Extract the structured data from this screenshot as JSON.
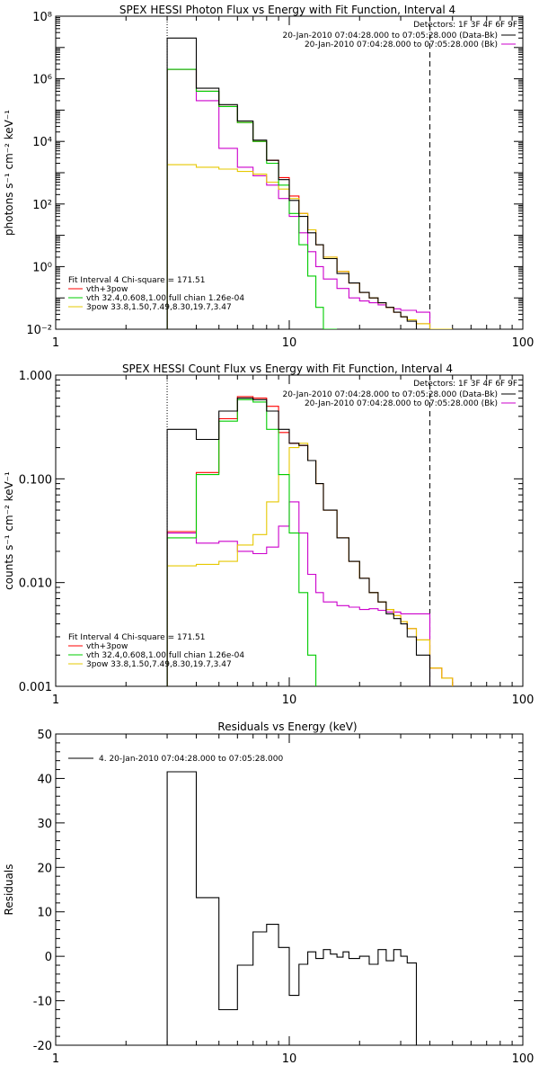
{
  "chart_data": [
    {
      "type": "line",
      "title": "SPEX HESSI Photon Flux vs Energy with Fit Function, Interval 4",
      "ylabel": "photons s⁻¹ cm⁻² keV⁻¹",
      "xscale": "log",
      "yscale": "log",
      "xlim": [
        1,
        100
      ],
      "ylim": [
        0.01,
        100000000
      ],
      "x_ticks": [
        "1",
        "10",
        "100"
      ],
      "y_ticks": [
        "10⁻²",
        "10⁰",
        "10²",
        "10⁴",
        "10⁶",
        "10⁸"
      ],
      "vlines": [
        {
          "x": 3,
          "style": "dotted"
        },
        {
          "x": 40,
          "style": "dashed"
        }
      ],
      "detectors": "Detectors: 1F 3F 4F 6F 9F",
      "legend_top": [
        {
          "label": "20-Jan-2010 07:04:28.000 to 07:05:28.000 (Data-Bk)",
          "color": "#000000"
        },
        {
          "label": "20-Jan-2010 07:04:28.000 to 07:05:28.000 (Bk)",
          "color": "#cc00cc"
        }
      ],
      "legend_bottom": [
        {
          "label": "Fit Interval 4    Chi-square = 171.51",
          "color": ""
        },
        {
          "label": "vth+3pow",
          "color": "#ff0000"
        },
        {
          "label": "vth 32.4,0.608,1.00   full chian 1.26e-04",
          "color": "#00cc00"
        },
        {
          "label": "3pow 33.8,1.50,7.49,8.30,19.7,3.47",
          "color": "#e6c800"
        }
      ],
      "bin_edges": [
        3,
        4,
        5,
        6,
        7,
        8,
        9,
        10,
        11,
        12,
        13,
        14,
        16,
        18,
        20,
        22,
        24,
        26,
        28,
        30,
        32,
        35,
        40,
        45,
        50
      ],
      "series": [
        {
          "name": "Data-Bk",
          "color": "#000000",
          "values": [
            20000000,
            500000,
            150000,
            45000,
            11000,
            2500,
            600,
            130,
            40,
            12,
            5,
            1.8,
            0.6,
            0.3,
            0.15,
            0.1,
            0.07,
            0.05,
            0.035,
            0.025,
            0.018,
            0.01,
            null,
            null
          ]
        },
        {
          "name": "Bk",
          "color": "#cc00cc",
          "values": [
            2000000,
            200000,
            6000,
            1500,
            800,
            400,
            150,
            40,
            12,
            3,
            1,
            0.4,
            0.2,
            0.1,
            0.08,
            0.07,
            0.06,
            0.05,
            0.045,
            0.04,
            0.04,
            0.035,
            null,
            null
          ]
        },
        {
          "name": "vth+3pow",
          "color": "#ff0000",
          "values": [
            2000000,
            400000,
            130000,
            40000,
            10000,
            2500,
            700,
            180,
            50,
            15,
            5,
            2,
            0.7,
            0.3,
            0.15,
            0.1,
            0.07,
            0.05,
            0.035,
            0.025,
            0.02,
            0.015,
            0.01,
            0.008
          ]
        },
        {
          "name": "vth",
          "color": "#00cc00",
          "values": [
            2000000,
            400000,
            130000,
            40000,
            10000,
            2000,
            400,
            50,
            5,
            0.5,
            0.05,
            0.005,
            null,
            null,
            null,
            null,
            null,
            null,
            null,
            null,
            null,
            null,
            null,
            null
          ]
        },
        {
          "name": "3pow",
          "color": "#e6c800",
          "values": [
            1800,
            1500,
            1300,
            1100,
            900,
            500,
            300,
            150,
            50,
            15,
            5,
            2,
            0.7,
            0.3,
            0.15,
            0.1,
            0.07,
            0.05,
            0.035,
            0.025,
            0.02,
            0.015,
            0.01,
            0.008
          ]
        }
      ]
    },
    {
      "type": "line",
      "title": "SPEX HESSI Count Flux vs Energy with Fit Function, Interval 4",
      "ylabel": "counts s⁻¹ cm⁻² keV⁻¹",
      "xscale": "log",
      "yscale": "log",
      "xlim": [
        1,
        100
      ],
      "ylim": [
        0.001,
        1
      ],
      "x_ticks": [
        "1",
        "10",
        "100"
      ],
      "y_ticks": [
        "0.001",
        "0.010",
        "0.100",
        "1.000"
      ],
      "vlines": [
        {
          "x": 3,
          "style": "dotted"
        },
        {
          "x": 40,
          "style": "dashed"
        }
      ],
      "detectors": "Detectors: 1F 3F 4F 6F 9F",
      "legend_top": [
        {
          "label": "20-Jan-2010 07:04:28.000 to 07:05:28.000 (Data-Bk)",
          "color": "#000000"
        },
        {
          "label": "20-Jan-2010 07:04:28.000 to 07:05:28.000 (Bk)",
          "color": "#cc00cc"
        }
      ],
      "legend_bottom": [
        {
          "label": "Fit Interval 4    Chi-square = 171.51",
          "color": ""
        },
        {
          "label": "vth+3pow",
          "color": "#ff0000"
        },
        {
          "label": "vth 32.4,0.608,1.00   full chian 1.26e-04",
          "color": "#00cc00"
        },
        {
          "label": "3pow 33.8,1.50,7.49,8.30,19.7,3.47",
          "color": "#e6c800"
        }
      ],
      "bin_edges": [
        3,
        4,
        5,
        6,
        7,
        8,
        9,
        10,
        11,
        12,
        13,
        14,
        16,
        18,
        20,
        22,
        24,
        26,
        28,
        30,
        32,
        35,
        40,
        45,
        50
      ],
      "series": [
        {
          "name": "Data-Bk",
          "color": "#000000",
          "values": [
            0.3,
            0.24,
            0.45,
            0.6,
            0.58,
            0.45,
            0.3,
            0.22,
            0.21,
            0.15,
            0.09,
            0.05,
            0.027,
            0.016,
            0.011,
            0.008,
            0.0065,
            0.005,
            0.0045,
            0.004,
            0.003,
            0.002,
            null,
            null
          ]
        },
        {
          "name": "Bk",
          "color": "#cc00cc",
          "values": [
            0.03,
            0.024,
            0.025,
            0.02,
            0.019,
            0.022,
            0.035,
            0.06,
            0.03,
            0.012,
            0.008,
            0.0065,
            0.006,
            0.0058,
            0.0055,
            0.0056,
            0.0054,
            0.0052,
            0.0052,
            0.005,
            0.005,
            0.005,
            null,
            null
          ]
        },
        {
          "name": "vth+3pow",
          "color": "#ff0000",
          "values": [
            0.031,
            0.115,
            0.38,
            0.62,
            0.6,
            0.5,
            0.28,
            0.22,
            0.21,
            0.15,
            0.09,
            0.05,
            0.027,
            0.016,
            0.011,
            0.008,
            0.0065,
            0.0055,
            0.0048,
            0.0042,
            0.0036,
            0.0028,
            0.0015,
            0.0012
          ]
        },
        {
          "name": "vth",
          "color": "#00cc00",
          "values": [
            0.027,
            0.11,
            0.36,
            0.58,
            0.55,
            0.3,
            0.11,
            0.03,
            0.008,
            0.002,
            null,
            null,
            null,
            null,
            null,
            null,
            null,
            null,
            null,
            null,
            null,
            null,
            null,
            null
          ]
        },
        {
          "name": "3pow",
          "color": "#e6c800",
          "values": [
            0.0145,
            0.015,
            0.016,
            0.023,
            0.029,
            0.06,
            0.11,
            0.2,
            0.22,
            0.15,
            0.09,
            0.05,
            0.027,
            0.016,
            0.011,
            0.008,
            0.0065,
            0.0055,
            0.0048,
            0.0042,
            0.0036,
            0.0028,
            0.0015,
            0.0012
          ]
        }
      ]
    },
    {
      "type": "line",
      "title": "Residuals vs Energy (keV)",
      "ylabel": "Residuals",
      "xscale": "log",
      "yscale": "linear",
      "xlim": [
        1,
        100
      ],
      "ylim": [
        -20,
        50
      ],
      "x_ticks": [
        "1",
        "10",
        "100"
      ],
      "y_ticks": [
        "-20",
        "-10",
        "0",
        "10",
        "20",
        "30",
        "40",
        "50"
      ],
      "legend": [
        {
          "label": "4. 20-Jan-2010 07:04:28.000 to 07:05:28.000",
          "color": "#000000"
        }
      ],
      "bin_edges": [
        3,
        4,
        5,
        6,
        7,
        8,
        9,
        10,
        11,
        12,
        13,
        14,
        15,
        16,
        17,
        18,
        20,
        22,
        24,
        26,
        28,
        30,
        32,
        35,
        40
      ],
      "series": [
        {
          "name": "4. 20-Jan-2010 07:04:28.000 to 07:05:28.000",
          "color": "#000000",
          "values": [
            41.5,
            13.2,
            -12,
            -2,
            5.5,
            7.2,
            2,
            -8.8,
            -1.8,
            1,
            -0.5,
            1.5,
            0.5,
            -0.2,
            1,
            -0.5,
            0,
            -1.8,
            1.5,
            -1,
            1.5,
            0,
            -1.5
          ]
        }
      ]
    }
  ]
}
